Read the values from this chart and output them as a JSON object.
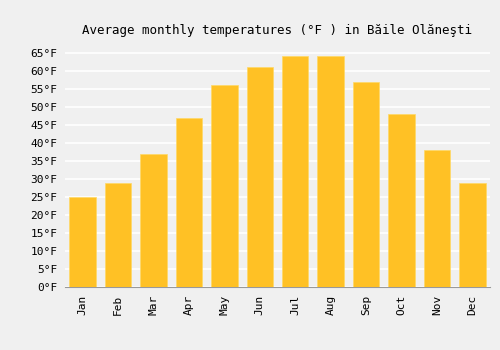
{
  "title": "Average monthly temperatures (°F ) in Băile Olăneşti",
  "months": [
    "Jan",
    "Feb",
    "Mar",
    "Apr",
    "May",
    "Jun",
    "Jul",
    "Aug",
    "Sep",
    "Oct",
    "Nov",
    "Dec"
  ],
  "values": [
    25,
    29,
    37,
    47,
    56,
    61,
    64,
    64,
    57,
    48,
    38,
    29
  ],
  "bar_color": "#FFC125",
  "bar_edge_color": "#FFD966",
  "ylim": [
    0,
    68
  ],
  "yticks": [
    0,
    5,
    10,
    15,
    20,
    25,
    30,
    35,
    40,
    45,
    50,
    55,
    60,
    65
  ],
  "ytick_labels": [
    "0°F",
    "5°F",
    "10°F",
    "15°F",
    "20°F",
    "25°F",
    "30°F",
    "35°F",
    "40°F",
    "45°F",
    "50°F",
    "55°F",
    "60°F",
    "65°F"
  ],
  "background_color": "#f0f0f0",
  "grid_color": "#ffffff",
  "title_fontsize": 9,
  "tick_fontsize": 8,
  "font_family": "monospace",
  "fig_width": 5.0,
  "fig_height": 3.5,
  "dpi": 100
}
